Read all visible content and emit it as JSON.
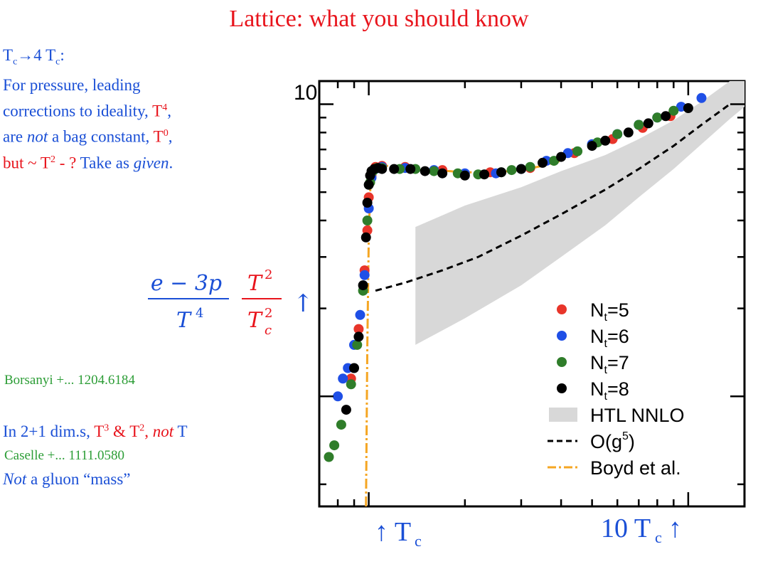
{
  "title": "Lattice: what you should know",
  "notes": {
    "tc_line": "T c→4 T c:",
    "tc_a": "T",
    "tc_sub_a": "c",
    "tc_arrow": "→4 T",
    "tc_sub_b": "c",
    "tc_colon": ":",
    "line2": "For pressure,  leading",
    "line3_pre": "corrections to ideality, ",
    "line3_red": "T",
    "line3_sup": "4",
    "line3_post": ",",
    "line4_pre": "are ",
    "line4_em": "not",
    "line4_mid": " a bag constant, ",
    "line4_red": "T",
    "line4_sup": "0",
    "line4_post": ",",
    "line5_red_pre": "but ~ T",
    "line5_sup": "2",
    "line5_red_post": " - ? ",
    "line5_blue": "Take as ",
    "line5_em": "given",
    "line5_end": "."
  },
  "ref1": "Borsanyi +... 1204.6184",
  "dims": {
    "pre": "In 2+1 dim.s, ",
    "t3": "T",
    "t3_sup": "3",
    "amp": " & T",
    "t2_sup": "2",
    "comma": ", ",
    "not": "not",
    "t": " T"
  },
  "ref2": "Caselle +... 1111.0580",
  "mass_em": "Not",
  "mass_rest": " a gluon “mass”",
  "ylabel": {
    "num_left": "e − 3p",
    "den_left": "T",
    "den_left_sup": "4",
    "num_right": "T",
    "num_right_sup": "2",
    "den_right": "T",
    "den_right_sup": "2",
    "den_right_sub": "c",
    "arrow": "↑"
  },
  "colors": {
    "red": "#e8141c",
    "blue": "#1a4fd6",
    "green": "#2c9d36",
    "band": "#d8d8d8",
    "boyd": "#f5a623",
    "nt5": "#e8352a",
    "nt6": "#1f4fe6",
    "nt7": "#2f7d2a",
    "nt8": "#000000"
  },
  "chart_data": {
    "type": "scatter",
    "ytick_label": "10",
    "xtick_labels": [
      "↑ T",
      "10 T"
    ],
    "xtick_sub": "c",
    "xtick_right_arrow": "↑",
    "x_scale": "log",
    "y_scale": "log",
    "xlim": [
      0.7,
      15
    ],
    "ylim": [
      0.42,
      12
    ],
    "legend": {
      "position": "bottom-right",
      "entries": [
        {
          "label": "N",
          "sub": "t",
          "post": "=5",
          "kind": "dot",
          "color": "#e8352a"
        },
        {
          "label": "N",
          "sub": "t",
          "post": "=6",
          "kind": "dot",
          "color": "#1f4fe6"
        },
        {
          "label": "N",
          "sub": "t",
          "post": "=7",
          "kind": "dot",
          "color": "#2f7d2a"
        },
        {
          "label": "N",
          "sub": "t",
          "post": "=8",
          "kind": "dot",
          "color": "#000000"
        },
        {
          "label": "HTL NNLO",
          "kind": "band",
          "color": "#d8d8d8"
        },
        {
          "label": "O(g",
          "sup": "5",
          "post": ")",
          "kind": "dash",
          "color": "#000000"
        },
        {
          "label": "Boyd et al.",
          "kind": "dashdot",
          "color": "#f5a623"
        }
      ]
    },
    "series": [
      {
        "name": "Nt=8",
        "color": "#000000",
        "x": [
          0.85,
          0.9,
          0.93,
          0.96,
          0.98,
          0.99,
          1.0,
          1.01,
          1.02,
          1.04,
          1.07,
          1.1,
          1.2,
          1.35,
          1.5,
          1.7,
          2.0,
          2.3,
          2.6,
          3.0,
          3.5,
          4.0,
          5.0,
          5.5,
          6.5,
          7.5,
          8.5,
          10.0
        ],
        "y": [
          0.9,
          1.25,
          1.6,
          2.4,
          3.5,
          4.6,
          5.3,
          5.7,
          5.9,
          6.0,
          6.05,
          6.0,
          6.0,
          6.0,
          5.9,
          5.8,
          5.7,
          5.75,
          5.85,
          6.0,
          6.3,
          6.6,
          7.2,
          7.5,
          8.0,
          8.6,
          9.1,
          9.7
        ]
      },
      {
        "name": "Nt=7",
        "color": "#2f7d2a",
        "x": [
          0.75,
          0.78,
          0.82,
          0.88,
          0.92,
          0.96,
          0.99,
          1.01,
          1.03,
          1.06,
          1.1,
          1.25,
          1.4,
          1.6,
          1.9,
          2.2,
          2.6,
          2.8,
          3.2,
          3.8,
          4.5,
          5.2,
          6.0,
          7.0,
          8.0,
          9.0
        ],
        "y": [
          0.62,
          0.68,
          0.8,
          1.1,
          1.5,
          2.3,
          4.0,
          5.4,
          5.9,
          6.05,
          6.05,
          6.0,
          6.0,
          5.9,
          5.8,
          5.75,
          5.85,
          5.95,
          6.1,
          6.4,
          6.9,
          7.4,
          7.9,
          8.5,
          9.0,
          9.5
        ]
      },
      {
        "name": "Nt=6",
        "color": "#1f4fe6",
        "x": [
          0.8,
          0.83,
          0.86,
          0.9,
          0.94,
          0.97,
          1.0,
          1.02,
          1.05,
          1.1,
          1.3,
          1.6,
          2.0,
          2.5,
          3.0,
          3.6,
          4.2,
          5.0,
          6.0,
          7.0,
          8.0,
          9.5,
          11.0
        ],
        "y": [
          1.0,
          1.15,
          1.25,
          1.5,
          1.9,
          2.6,
          4.4,
          5.6,
          6.0,
          6.1,
          6.05,
          5.95,
          5.8,
          5.8,
          6.0,
          6.4,
          6.8,
          7.3,
          7.9,
          8.5,
          9.0,
          9.8,
          10.5
        ]
      },
      {
        "name": "Nt=5",
        "color": "#e8352a",
        "x": [
          0.88,
          0.93,
          0.97,
          0.99,
          1.0,
          1.02,
          1.05,
          1.1,
          1.3,
          1.7,
          2.4,
          3.2,
          4.4,
          5.8,
          7.2,
          8.8
        ],
        "y": [
          1.15,
          1.7,
          2.7,
          3.7,
          4.8,
          5.7,
          6.1,
          6.15,
          6.1,
          5.95,
          5.85,
          6.05,
          6.8,
          7.6,
          8.3,
          9.1
        ]
      }
    ],
    "lines": {
      "boyd": {
        "x": [
          0.98,
          0.99,
          1.0,
          1.01,
          1.02,
          1.04,
          1.08,
          1.15,
          1.3,
          1.6,
          2.0,
          2.5,
          3.0,
          3.5,
          4.0
        ],
        "y": [
          0.42,
          1.5,
          3.5,
          5.0,
          5.7,
          6.0,
          6.15,
          6.15,
          6.1,
          5.95,
          5.85,
          5.85,
          5.95,
          6.15,
          6.4
        ]
      },
      "og5": {
        "x": [
          1.05,
          1.3,
          1.7,
          2.2,
          3.0,
          4.0,
          5.5,
          7.0,
          9.0,
          11.0,
          13.5
        ],
        "y": [
          2.3,
          2.45,
          2.7,
          3.0,
          3.55,
          4.2,
          5.1,
          6.0,
          7.2,
          8.5,
          10.0
        ]
      },
      "htl_upper": {
        "x": [
          1.4,
          2.0,
          3.0,
          4.0,
          5.5,
          7.0,
          9.0,
          11.0,
          13.5,
          15.0
        ],
        "y": [
          3.8,
          4.5,
          5.2,
          5.9,
          6.7,
          7.6,
          8.8,
          10.2,
          12.0,
          12.0
        ]
      },
      "htl_lower": {
        "x": [
          1.4,
          2.0,
          3.0,
          4.0,
          5.5,
          7.0,
          9.0,
          11.0,
          13.5,
          15.0
        ],
        "y": [
          1.5,
          1.85,
          2.4,
          3.0,
          3.85,
          4.8,
          6.0,
          7.3,
          8.9,
          9.8
        ]
      }
    }
  }
}
